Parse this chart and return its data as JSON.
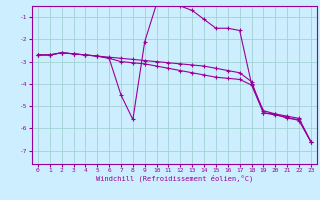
{
  "xlabel": "Windchill (Refroidissement éolien,°C)",
  "bg_color": "#cceeff",
  "line_color": "#990099",
  "grid_color": "#99cccc",
  "xlim": [
    -0.5,
    23.5
  ],
  "ylim": [
    -7.6,
    -0.5
  ],
  "yticks": [
    -7,
    -6,
    -5,
    -4,
    -3,
    -2,
    -1
  ],
  "xticks": [
    0,
    1,
    2,
    3,
    4,
    5,
    6,
    7,
    8,
    9,
    10,
    11,
    12,
    13,
    14,
    15,
    16,
    17,
    18,
    19,
    20,
    21,
    22,
    23
  ],
  "s1_x": [
    0,
    1,
    2,
    3,
    4,
    5,
    6,
    7,
    8,
    9,
    10,
    11,
    12,
    13,
    14,
    15,
    16,
    17,
    18,
    19,
    20,
    21,
    22,
    23
  ],
  "s1_y": [
    -2.7,
    -2.7,
    -2.6,
    -2.65,
    -2.7,
    -2.75,
    -2.8,
    -2.85,
    -2.9,
    -2.95,
    -3.0,
    -3.05,
    -3.1,
    -3.15,
    -3.2,
    -3.3,
    -3.4,
    -3.5,
    -3.9,
    -5.3,
    -5.35,
    -5.45,
    -5.55,
    -6.6
  ],
  "s2_x": [
    0,
    1,
    2,
    3,
    4,
    5,
    6,
    7,
    8,
    9,
    10,
    11,
    12,
    13,
    14,
    15,
    16,
    17,
    18,
    19,
    20,
    21,
    22,
    23
  ],
  "s2_y": [
    -2.7,
    -2.7,
    -2.6,
    -2.65,
    -2.7,
    -2.75,
    -2.85,
    -4.5,
    -5.6,
    -2.1,
    -0.4,
    -0.2,
    -0.5,
    -0.7,
    -1.1,
    -1.5,
    -1.5,
    -1.6,
    -4.0,
    -5.2,
    -5.35,
    -5.55,
    -5.6,
    -6.6
  ],
  "s3_x": [
    0,
    1,
    2,
    3,
    4,
    5,
    6,
    7,
    8,
    9,
    10,
    11,
    12,
    13,
    14,
    15,
    16,
    17,
    18,
    19,
    20,
    21,
    22,
    23
  ],
  "s3_y": [
    -2.7,
    -2.7,
    -2.6,
    -2.65,
    -2.7,
    -2.75,
    -2.85,
    -3.0,
    -3.05,
    -3.1,
    -3.2,
    -3.3,
    -3.4,
    -3.5,
    -3.6,
    -3.7,
    -3.75,
    -3.8,
    -4.05,
    -5.3,
    -5.4,
    -5.5,
    -5.65,
    -6.6
  ]
}
